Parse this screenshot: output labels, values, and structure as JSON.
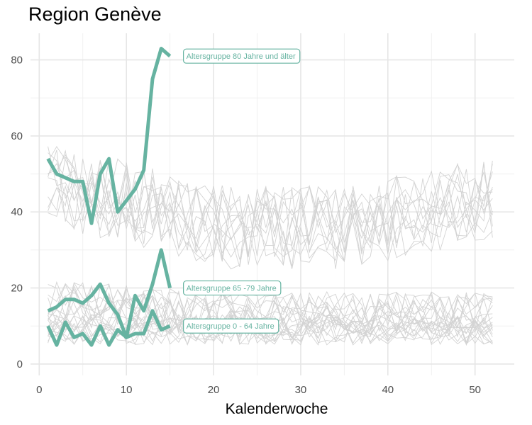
{
  "chart_data": {
    "type": "line",
    "title": "Region Genève",
    "xlabel": "Kalenderwoche",
    "ylabel": "",
    "xlim": [
      -1,
      54.5
    ],
    "ylim": [
      -3,
      87
    ],
    "x_ticks": [
      0,
      10,
      20,
      30,
      40,
      50
    ],
    "y_ticks": [
      0,
      20,
      40,
      60,
      80
    ],
    "grid": true,
    "highlight_color": "#66b3a1",
    "background_color": "#d3d3d3",
    "highlight_series": [
      {
        "name": "Altersgruppe 80 Jahre und älter",
        "x": [
          1,
          2,
          3,
          4,
          5,
          6,
          7,
          8,
          9,
          10,
          11,
          12,
          13,
          14,
          15
        ],
        "y": [
          54,
          50,
          49,
          48,
          48,
          37,
          50,
          54,
          40,
          43,
          46,
          51,
          75,
          83,
          81
        ]
      },
      {
        "name": "Altersgruppe 65 -79 Jahre",
        "x": [
          1,
          2,
          3,
          4,
          5,
          6,
          7,
          8,
          9,
          10,
          11,
          12,
          13,
          14,
          15
        ],
        "y": [
          14,
          15,
          17,
          17,
          16,
          18,
          21,
          16,
          13,
          7,
          18,
          14,
          21,
          30,
          20
        ]
      },
      {
        "name": "Altersgruppe 0 - 64 Jahre",
        "x": [
          1,
          2,
          3,
          4,
          5,
          6,
          7,
          8,
          9,
          10,
          11,
          12,
          13,
          14,
          15
        ],
        "y": [
          10,
          5,
          11,
          7,
          8,
          5,
          10,
          5,
          9,
          7,
          8,
          8,
          14,
          9,
          10
        ]
      }
    ]
  }
}
